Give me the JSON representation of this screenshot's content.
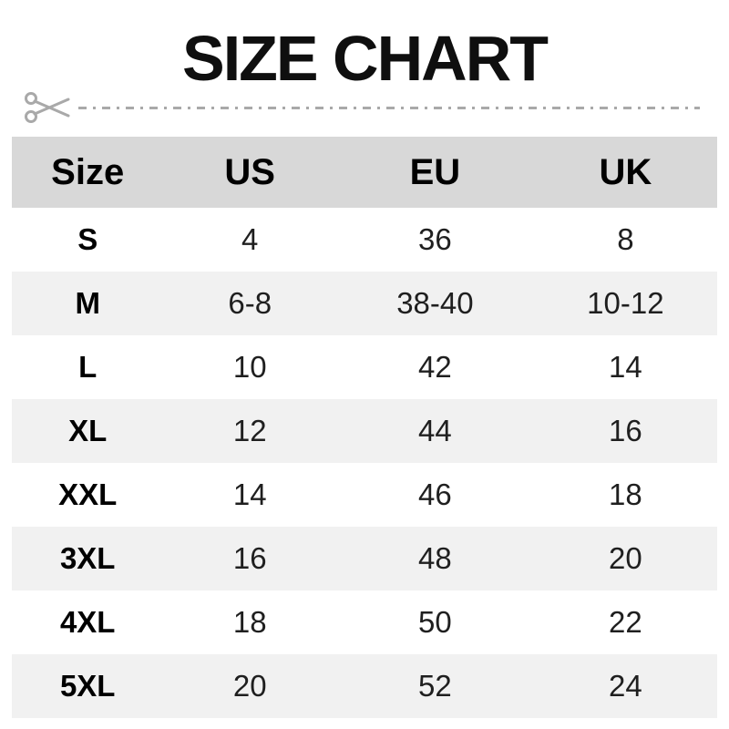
{
  "title": "SIZE CHART",
  "icons": {
    "scissors": "scissors-icon"
  },
  "colors": {
    "header_bg": "#d8d8d8",
    "row_alt_bg": "#f1f1f1",
    "row_bg": "#ffffff",
    "title_text": "#0f0f0f",
    "cell_text": "#1f1f1f",
    "cut_line": "#a9a9a9"
  },
  "chart_data": {
    "type": "table",
    "title": "SIZE CHART",
    "columns": [
      "Size",
      "US",
      "EU",
      "UK"
    ],
    "rows": [
      [
        "S",
        "4",
        "36",
        "8"
      ],
      [
        "M",
        "6-8",
        "38-40",
        "10-12"
      ],
      [
        "L",
        "10",
        "42",
        "14"
      ],
      [
        "XL",
        "12",
        "44",
        "16"
      ],
      [
        "XXL",
        "14",
        "46",
        "18"
      ],
      [
        "3XL",
        "16",
        "48",
        "20"
      ],
      [
        "4XL",
        "18",
        "50",
        "22"
      ],
      [
        "5XL",
        "20",
        "52",
        "24"
      ]
    ]
  }
}
